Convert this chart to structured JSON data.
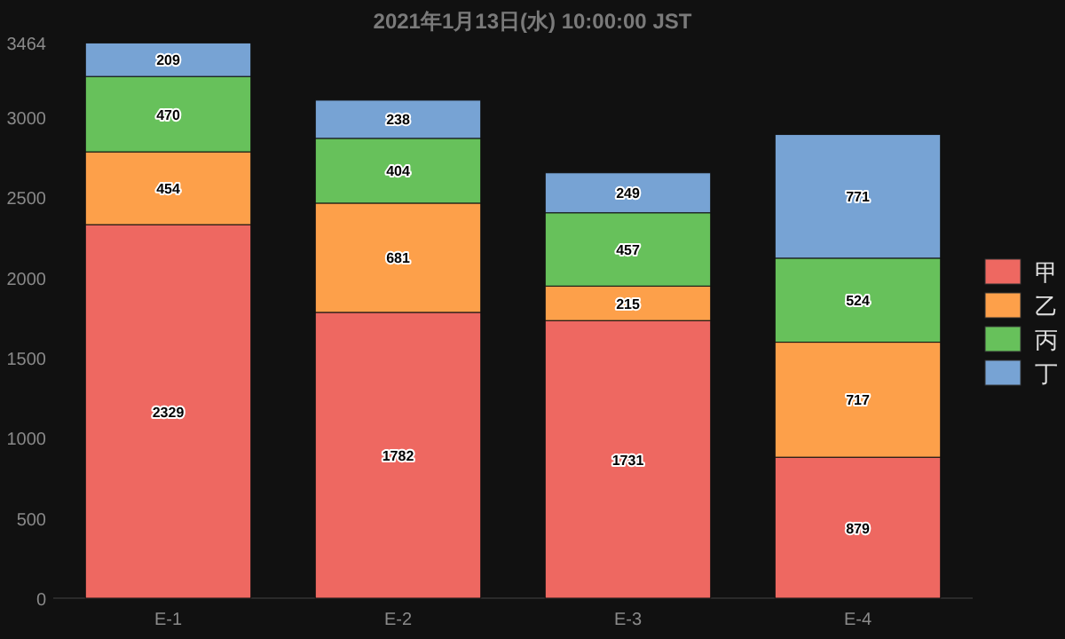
{
  "chart_data": {
    "type": "bar",
    "title": "2021年1月13日(水) 10:00:00 JST",
    "stacked": true,
    "data_labels": true,
    "legend": "right",
    "grid": false,
    "categories": [
      "E-1",
      "E-2",
      "E-3",
      "E-4"
    ],
    "series": [
      {
        "name": "甲",
        "color": "#ee6861",
        "values": [
          2329,
          1782,
          1731,
          879
        ]
      },
      {
        "name": "乙",
        "color": "#fda04a",
        "values": [
          454,
          681,
          215,
          717
        ]
      },
      {
        "name": "丙",
        "color": "#67c15b",
        "values": [
          470,
          404,
          457,
          524
        ]
      },
      {
        "name": "丁",
        "color": "#77a3d4",
        "values": [
          209,
          238,
          249,
          771
        ]
      }
    ],
    "ylim": [
      0,
      3464
    ],
    "yticks": [
      0,
      500,
      1000,
      1500,
      2000,
      2500,
      3000,
      3464
    ]
  }
}
